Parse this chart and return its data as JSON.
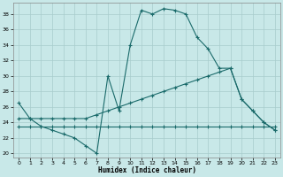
{
  "xlabel": "Humidex (Indice chaleur)",
  "bg_color": "#c8e8e8",
  "line_color": "#1a6a6a",
  "grid_color": "#a8cccc",
  "xlim": [
    -0.5,
    23.5
  ],
  "ylim": [
    19.5,
    39.5
  ],
  "yticks": [
    20,
    22,
    24,
    26,
    28,
    30,
    32,
    34,
    36,
    38
  ],
  "xticks": [
    0,
    1,
    2,
    3,
    4,
    5,
    6,
    7,
    8,
    9,
    10,
    11,
    12,
    13,
    14,
    15,
    16,
    17,
    18,
    19,
    20,
    21,
    22,
    23
  ],
  "line1_x": [
    0,
    1,
    2,
    3,
    4,
    5,
    6,
    7,
    8,
    9,
    10,
    11,
    12,
    13,
    14,
    15,
    16,
    17,
    18,
    19,
    20,
    21,
    22,
    23
  ],
  "line1_y": [
    26.5,
    24.5,
    23.5,
    23.0,
    22.5,
    22.0,
    21.0,
    20.0,
    30.0,
    25.5,
    34.0,
    38.5,
    38.0,
    38.7,
    38.5,
    38.0,
    35.0,
    33.5,
    31.0,
    31.0,
    27.0,
    25.5,
    24.0,
    23.0
  ],
  "line2_x": [
    0,
    1,
    2,
    3,
    4,
    5,
    6,
    7,
    8,
    9,
    10,
    11,
    12,
    13,
    14,
    15,
    16,
    17,
    18,
    19,
    20,
    21,
    22,
    23
  ],
  "line2_y": [
    24.5,
    24.5,
    24.5,
    24.5,
    24.5,
    24.5,
    24.5,
    25.0,
    25.5,
    26.0,
    26.5,
    27.0,
    27.5,
    28.0,
    28.5,
    29.0,
    29.5,
    30.0,
    30.5,
    31.0,
    27.0,
    25.5,
    24.0,
    23.0
  ],
  "line3_x": [
    0,
    1,
    2,
    3,
    4,
    5,
    6,
    7,
    8,
    9,
    10,
    11,
    12,
    13,
    14,
    15,
    16,
    17,
    18,
    19,
    20,
    21,
    22,
    23
  ],
  "line3_y": [
    23.5,
    23.5,
    23.5,
    23.5,
    23.5,
    23.5,
    23.5,
    23.5,
    23.5,
    23.5,
    23.5,
    23.5,
    23.5,
    23.5,
    23.5,
    23.5,
    23.5,
    23.5,
    23.5,
    23.5,
    23.5,
    23.5,
    23.5,
    23.5
  ]
}
